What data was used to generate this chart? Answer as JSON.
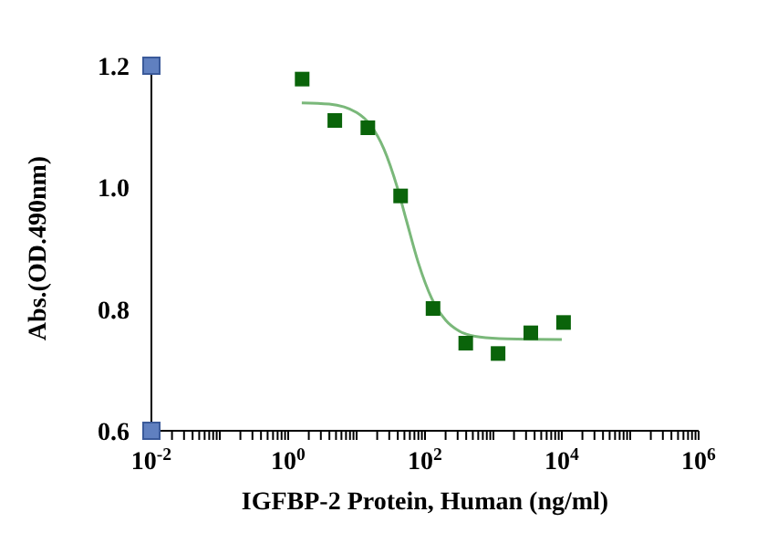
{
  "chart_data": {
    "type": "scatter",
    "xlabel": "IGFBP-2 Protein, Human (ng/ml)",
    "ylabel": "Abs.(OD.490nm)",
    "log": "x",
    "marker": "square",
    "xlim": [
      0.01,
      1000000
    ],
    "xticks": [
      {
        "value": 0.01,
        "label": "10$^{-2}$"
      },
      {
        "value": 0.02,
        "label": null
      },
      {
        "value": 0.03,
        "label": null
      },
      {
        "value": 0.04,
        "label": null
      },
      {
        "value": 0.05,
        "label": null
      },
      {
        "value": 0.06,
        "label": null
      },
      {
        "value": 0.07,
        "label": null
      },
      {
        "value": 0.08,
        "label": null
      },
      {
        "value": 0.09,
        "label": null
      },
      {
        "value": 0.1,
        "label": null
      },
      {
        "value": 0.2,
        "label": null
      },
      {
        "value": 0.3,
        "label": null
      },
      {
        "value": 0.4,
        "label": null
      },
      {
        "value": 0.5,
        "label": null
      },
      {
        "value": 0.6,
        "label": null
      },
      {
        "value": 0.7,
        "label": null
      },
      {
        "value": 0.8,
        "label": null
      },
      {
        "value": 0.9,
        "label": null
      },
      {
        "value": 1,
        "label": "10$^{0}$"
      },
      {
        "value": 2,
        "label": null
      },
      {
        "value": 3,
        "label": null
      },
      {
        "value": 4,
        "label": null
      },
      {
        "value": 5,
        "label": null
      },
      {
        "value": 6,
        "label": null
      },
      {
        "value": 7,
        "label": null
      },
      {
        "value": 8,
        "label": null
      },
      {
        "value": 9,
        "label": null
      },
      {
        "value": 10,
        "label": null
      },
      {
        "value": 20,
        "label": null
      },
      {
        "value": 30,
        "label": null
      },
      {
        "value": 40,
        "label": null
      },
      {
        "value": 50,
        "label": null
      },
      {
        "value": 60,
        "label": null
      },
      {
        "value": 70,
        "label": null
      },
      {
        "value": 80,
        "label": null
      },
      {
        "value": 90,
        "label": null
      },
      {
        "value": 100,
        "label": "10$^{2}$"
      },
      {
        "value": 200,
        "label": null
      },
      {
        "value": 300,
        "label": null
      },
      {
        "value": 400,
        "label": null
      },
      {
        "value": 500,
        "label": null
      },
      {
        "value": 600,
        "label": null
      },
      {
        "value": 700,
        "label": null
      },
      {
        "value": 800,
        "label": null
      },
      {
        "value": 900,
        "label": null
      },
      {
        "value": 1000,
        "label": null
      },
      {
        "value": 2000,
        "label": null
      },
      {
        "value": 3000,
        "label": null
      },
      {
        "value": 4000,
        "label": null
      },
      {
        "value": 5000,
        "label": null
      },
      {
        "value": 6000,
        "label": null
      },
      {
        "value": 7000,
        "label": null
      },
      {
        "value": 8000,
        "label": null
      },
      {
        "value": 9000,
        "label": null
      },
      {
        "value": 10000,
        "label": "10$^{4}$"
      },
      {
        "value": 20000,
        "label": null
      },
      {
        "value": 30000,
        "label": null
      },
      {
        "value": 40000,
        "label": null
      },
      {
        "value": 50000,
        "label": null
      },
      {
        "value": 60000,
        "label": null
      },
      {
        "value": 70000,
        "label": null
      },
      {
        "value": 80000,
        "label": null
      },
      {
        "value": 90000,
        "label": null
      },
      {
        "value": 100000,
        "label": null
      },
      {
        "value": 200000,
        "label": null
      },
      {
        "value": 300000,
        "label": null
      },
      {
        "value": 400000,
        "label": null
      },
      {
        "value": 500000,
        "label": null
      },
      {
        "value": 600000,
        "label": null
      },
      {
        "value": 700000,
        "label": null
      },
      {
        "value": 800000,
        "label": null
      },
      {
        "value": 900000,
        "label": null
      },
      {
        "value": 1000000,
        "label": "10$^{6}$"
      }
    ],
    "ylim": [
      0.6,
      1.2
    ],
    "yticks": [
      0.6,
      0.8,
      {
        "value": 1,
        "label": "1.0"
      },
      1.2
    ],
    "series": [
      {
        "color": "#0a640a",
        "x": [
          1.6,
          4.8,
          14.6,
          44,
          131,
          394,
          1170,
          3520,
          10600
        ],
        "values": [
          1.178,
          1.11,
          1.098,
          0.986,
          0.801,
          0.744,
          0.727,
          0.761,
          0.778
        ]
      },
      {
        "type": "line",
        "color": "#7ab87a",
        "marker": "none",
        "x": [
          1.58,
          3.98,
          10,
          15.8,
          25.1,
          39.8,
          53.7,
          79.4,
          126,
          200,
          316,
          631,
          1585,
          10000
        ],
        "values": [
          1.139,
          1.137,
          1.123,
          1.103,
          1.063,
          0.998,
          0.945,
          0.877,
          0.817,
          0.782,
          0.764,
          0.754,
          0.751,
          0.75
        ]
      }
    ]
  }
}
